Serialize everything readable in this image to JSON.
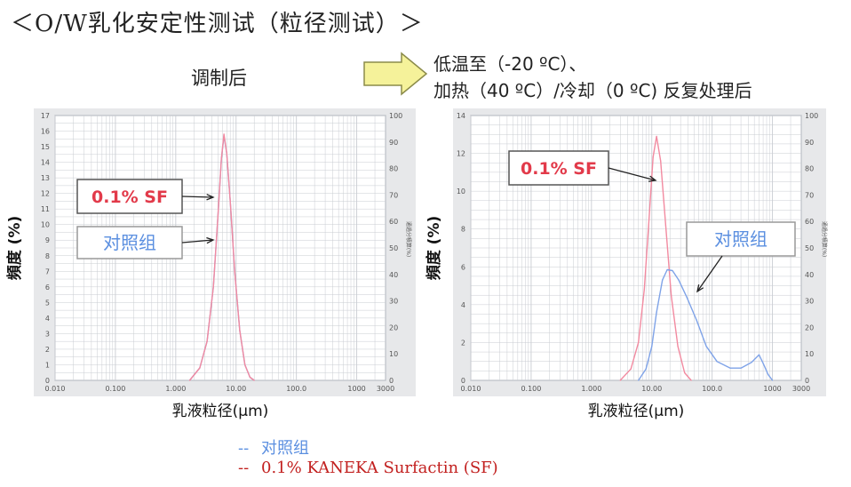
{
  "page_title": "＜O/W乳化安定性测试（粒径测试）＞",
  "conditions": {
    "left": "调制后",
    "right_line1": "低温至（-20 ºC）、",
    "right_line2": "加热（40 ºC）/冷却（0 ºC) 反复处理后",
    "arrow_icon": "right-arrow-icon",
    "arrow_color": "#f5f29a"
  },
  "legend": {
    "control": {
      "dash": "--",
      "label": "对照组",
      "color": "#5b8fe0"
    },
    "sf": {
      "dash": "--",
      "label": "0.1% KANEKA Surfactin (SF)",
      "color": "#c2201f"
    }
  },
  "colors": {
    "sf": "#f28aa0",
    "control": "#7fa3e8",
    "grid": "#c9ccd2",
    "panel_bg": "#e7e8ea"
  },
  "chart_data": [
    {
      "type": "line",
      "panel": "调制后",
      "title": "",
      "xlabel": "乳液粒径(μm)",
      "ylabel": "頻度 (%)",
      "x_scale": "log",
      "xlim": [
        0.01,
        3000
      ],
      "x_ticks": [
        0.01,
        0.1,
        1.0,
        10.0,
        100.0,
        1000,
        3000
      ],
      "x_tick_labels": [
        "0.010",
        "0.100",
        "1.000",
        "10.00",
        "100.0",
        "1000",
        "3000"
      ],
      "ylim": [
        0,
        17
      ],
      "y_ticks": [
        0,
        1,
        2,
        3,
        4,
        5,
        6,
        7,
        8,
        9,
        10,
        11,
        12,
        13,
        14,
        15,
        16,
        17
      ],
      "y2_ticks": [
        0,
        10,
        20,
        30,
        40,
        50,
        60,
        70,
        80,
        90,
        100
      ],
      "y2_label": "通過分積算(%)",
      "grid": true,
      "series": [
        {
          "name": "对照组",
          "key": "control",
          "x": [
            1.7,
            2.5,
            3.3,
            4.2,
            5.0,
            5.7,
            6.3,
            7.0,
            8.0,
            9.5,
            11.5,
            14.0,
            17.0,
            20.0
          ],
          "y": [
            0,
            0.8,
            2.5,
            6.0,
            10.5,
            14.2,
            15.7,
            14.6,
            11.5,
            7.0,
            3.2,
            1.0,
            0.2,
            0
          ]
        },
        {
          "name": "0.1% SF",
          "key": "sf",
          "x": [
            1.7,
            2.5,
            3.3,
            4.2,
            5.0,
            5.7,
            6.3,
            7.0,
            8.0,
            9.5,
            11.5,
            14.0,
            17.0,
            20.0
          ],
          "y": [
            0,
            0.8,
            2.5,
            6.0,
            10.5,
            14.2,
            15.8,
            14.6,
            11.5,
            7.0,
            3.2,
            1.0,
            0.2,
            0
          ]
        }
      ],
      "annotations": [
        {
          "text": "0.1% SF",
          "key": "sf",
          "box_color": "#e23a4a"
        },
        {
          "text": "对照组",
          "key": "control",
          "box_color": "#5b8fe0"
        }
      ]
    },
    {
      "type": "line",
      "panel": "低温至（-20 ºC）、加热（40 ºC）/冷却（0 ºC) 反复处理后",
      "title": "",
      "xlabel": "乳液粒径(μm)",
      "ylabel": "頻度 (%)",
      "x_scale": "log",
      "xlim": [
        0.01,
        3000
      ],
      "x_ticks": [
        0.01,
        0.1,
        1.0,
        10.0,
        100.0,
        1000,
        3000
      ],
      "x_tick_labels": [
        "0.010",
        "0.100",
        "1.000",
        "10.00",
        "100.0",
        "1000",
        "3000"
      ],
      "ylim": [
        0,
        14
      ],
      "y_ticks": [
        0,
        2,
        4,
        6,
        8,
        10,
        12,
        14
      ],
      "y2_ticks": [
        0,
        10,
        20,
        30,
        40,
        50,
        60,
        70,
        80,
        90,
        100
      ],
      "y2_label": "通過分積算(%)",
      "grid": true,
      "series": [
        {
          "name": "0.1% SF",
          "key": "sf",
          "x": [
            3.0,
            4.5,
            6.0,
            7.5,
            9.0,
            10.5,
            12.0,
            14.0,
            17.0,
            21.0,
            27.0,
            35.0,
            45.0
          ],
          "y": [
            0,
            0.6,
            2.0,
            4.8,
            8.5,
            11.8,
            12.9,
            11.6,
            8.2,
            4.5,
            1.8,
            0.4,
            0
          ]
        },
        {
          "name": "对照组",
          "key": "control",
          "x": [
            6.0,
            8.0,
            10.0,
            12.0,
            15.0,
            18.0,
            22.0,
            28.0,
            38.0,
            55.0,
            80.0,
            120.0,
            200.0,
            300.0,
            450.0,
            600.0,
            700.0,
            850.0,
            1000
          ],
          "y": [
            0,
            0.6,
            1.8,
            3.6,
            5.3,
            5.85,
            5.8,
            5.3,
            4.4,
            3.2,
            1.8,
            1.0,
            0.65,
            0.65,
            0.95,
            1.35,
            0.9,
            0.3,
            0
          ]
        }
      ],
      "annotations": [
        {
          "text": "0.1% SF",
          "key": "sf",
          "box_color": "#e23a4a"
        },
        {
          "text": "对照组",
          "key": "control",
          "box_color": "#5b8fe0"
        }
      ]
    }
  ]
}
